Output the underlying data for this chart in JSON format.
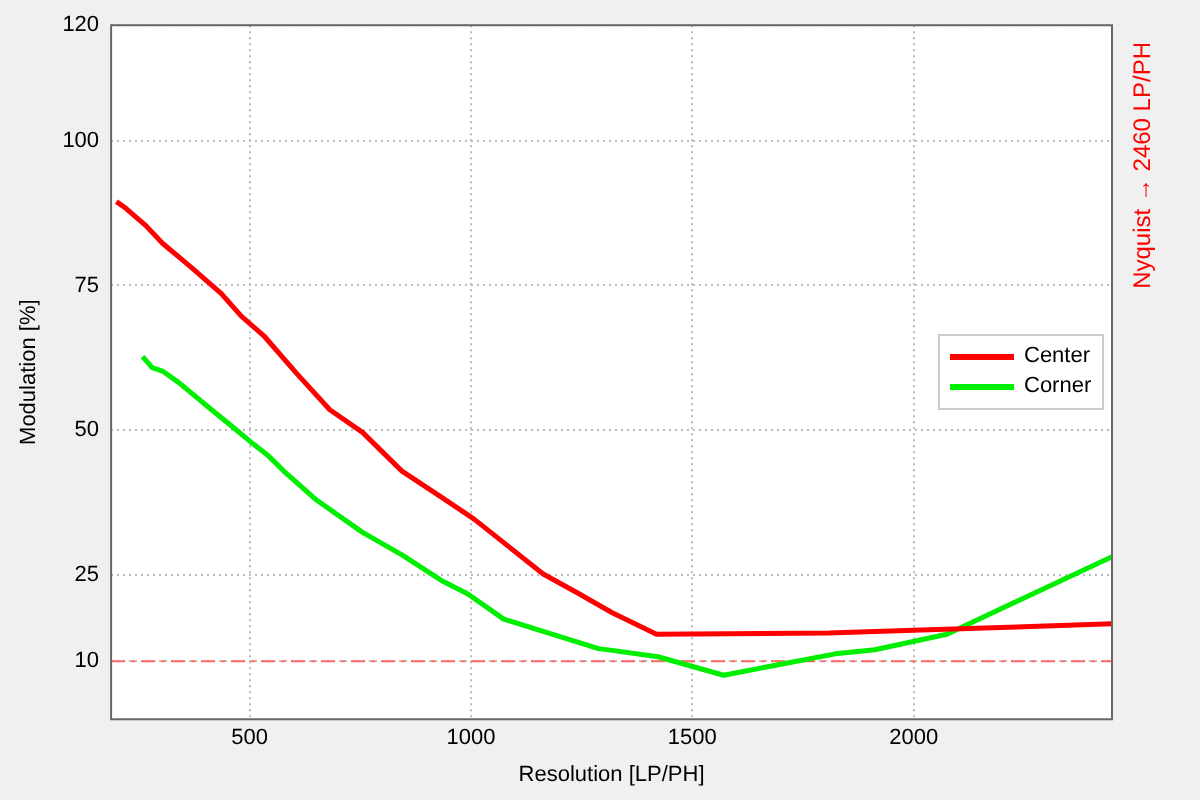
{
  "chart_data": {
    "type": "line",
    "xlabel": "Resolution [LP/PH]",
    "ylabel": "Modulation [%]",
    "xlim": [
      187,
      2448
    ],
    "xticks": [
      500,
      1000,
      1500,
      2000
    ],
    "ylim": [
      0,
      120
    ],
    "yticks": [
      10,
      25,
      50,
      75,
      100,
      120
    ],
    "grid": true,
    "legend": "right",
    "marker": "none",
    "line_style": "solid",
    "series": [
      {
        "name": "Center",
        "color": "#ff0000",
        "x": [
          199,
          221,
          266,
          303,
          370,
          436,
          481,
          532,
          607,
          681,
          755,
          844,
          933,
          1007,
          1081,
          1163,
          1244,
          1319,
          1419,
          1808,
          2000,
          2178,
          2448
        ],
        "values": [
          89.5,
          88.3,
          85.3,
          82.3,
          78,
          73.6,
          69.7,
          66.3,
          59.7,
          53.5,
          49.6,
          42.9,
          38.4,
          34.6,
          30.1,
          25.1,
          21.7,
          18.4,
          14.7,
          14.9,
          15.4,
          15.8,
          16.5
        ]
      },
      {
        "name": "Corner",
        "color": "#00ee00",
        "x": [
          258,
          280,
          303,
          340,
          370,
          414,
          459,
          503,
          540,
          577,
          651,
          755,
          844,
          933,
          992,
          1074,
          1170,
          1288,
          1319,
          1422,
          1571,
          1823,
          1912,
          2075,
          2448
        ],
        "values": [
          62.7,
          60.8,
          60.2,
          58.2,
          56.3,
          53.5,
          50.7,
          47.9,
          45.7,
          42.9,
          37.9,
          32.3,
          28.4,
          24,
          21.7,
          17.3,
          15,
          12.2,
          11.9,
          10.8,
          7.6,
          11.3,
          12,
          14.7,
          28.1
        ]
      }
    ],
    "ref_lines": [
      {
        "axis": "y",
        "value": 10,
        "color": "#ff6666",
        "line_style": "dashed"
      }
    ],
    "annotations": [
      "Nyquist → 2460 LP/PH"
    ]
  }
}
